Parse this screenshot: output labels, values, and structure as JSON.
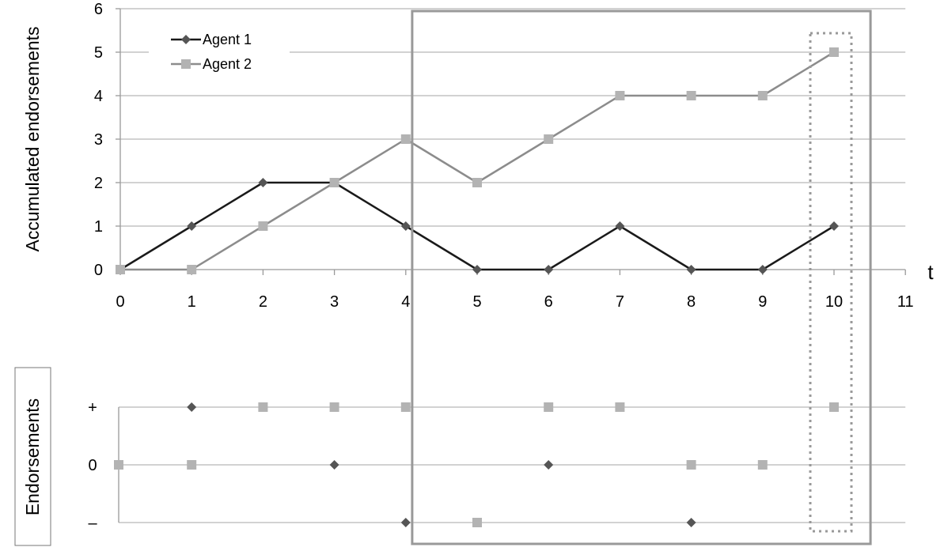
{
  "chart_data": [
    {
      "type": "line",
      "title": "",
      "xlabel": "t",
      "ylabel": "Accumulated endorsements",
      "x": [
        0,
        1,
        2,
        3,
        4,
        5,
        6,
        7,
        8,
        9,
        10
      ],
      "xlim": [
        0,
        11
      ],
      "ylim": [
        0,
        6
      ],
      "x_ticks": [
        "0",
        "1",
        "2",
        "3",
        "4",
        "5",
        "6",
        "7",
        "8",
        "9",
        "10",
        "11"
      ],
      "y_ticks": [
        "0",
        "1",
        "2",
        "3",
        "4",
        "5",
        "6"
      ],
      "grid": "horizontal",
      "legend": "top-left",
      "series": [
        {
          "name": "Agent 1",
          "color": "#1a1a1a",
          "marker_color": "#555555",
          "marker": "diamond",
          "values": [
            0,
            1,
            2,
            2,
            1,
            0,
            0,
            1,
            0,
            0,
            1
          ]
        },
        {
          "name": "Agent 2",
          "color": "#8c8c8c",
          "marker_color": "#b3b3b3",
          "marker": "square",
          "values": [
            0,
            0,
            1,
            2,
            3,
            2,
            3,
            4,
            4,
            4,
            5
          ]
        }
      ]
    },
    {
      "type": "scatter",
      "title": "",
      "ylabel": "Endorsements",
      "y_categories": [
        "+",
        "0",
        "–"
      ],
      "x": [
        0,
        1,
        2,
        3,
        4,
        5,
        6,
        7,
        8,
        9,
        10
      ],
      "grid": "horizontal",
      "series": [
        {
          "name": "Agent 1",
          "marker": "diamond",
          "color": "#555555",
          "values": [
            null,
            "+",
            null,
            "0",
            "–",
            null,
            "0",
            null,
            "–",
            null,
            null
          ]
        },
        {
          "name": "Agent 2",
          "marker": "square",
          "color": "#b3b3b3",
          "values": [
            "0",
            "0",
            "+",
            "+",
            "+",
            "–",
            "+",
            "+",
            "0",
            "0",
            "+"
          ]
        }
      ]
    }
  ],
  "annotations": [
    {
      "type": "rectangle",
      "style": "solid",
      "x_range": [
        4.5,
        10.5
      ]
    },
    {
      "type": "rectangle",
      "style": "dotted",
      "x_range": [
        9.7,
        10.25
      ]
    }
  ]
}
